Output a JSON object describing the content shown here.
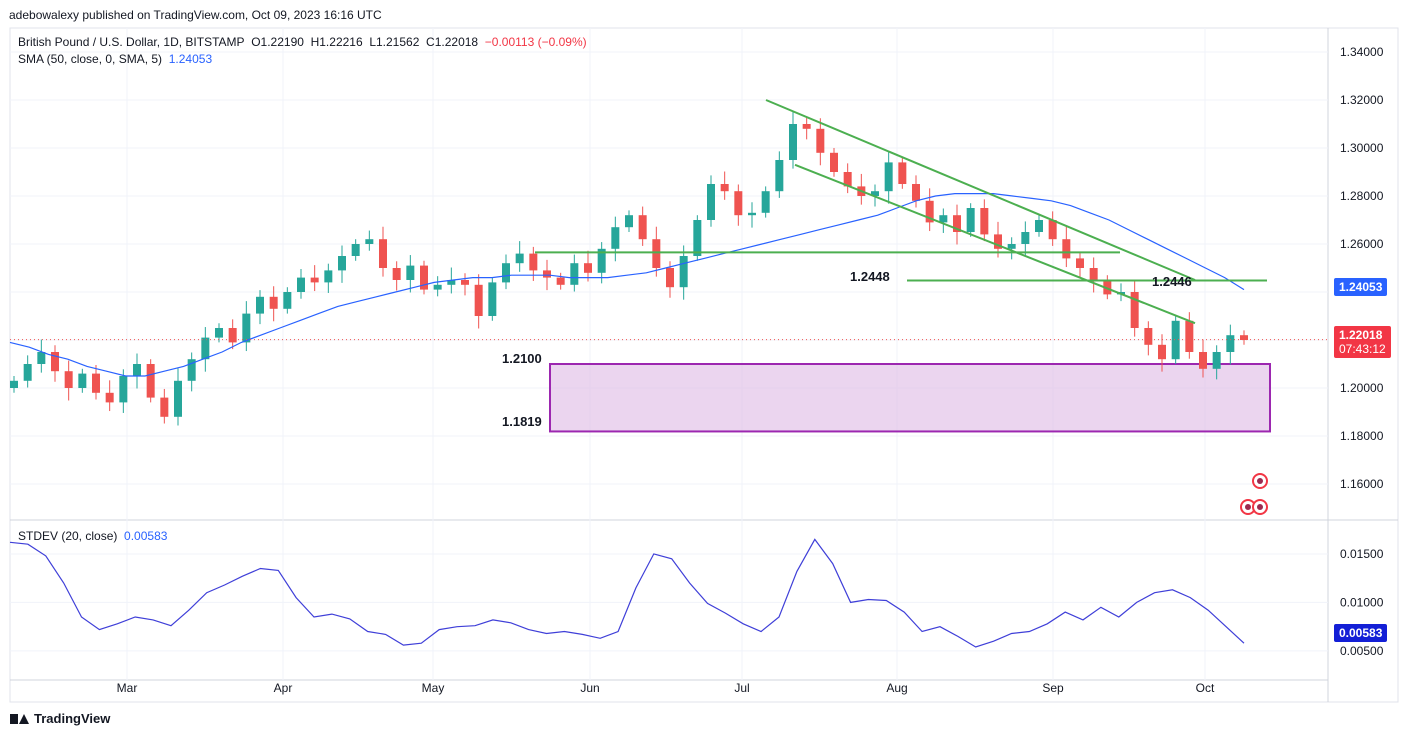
{
  "header": {
    "published": "adebowalexy published on TradingView.com, Oct 09, 2023 16:16 UTC",
    "symbol": "British Pound / U.S. Dollar, 1D, BITSTAMP",
    "open": "O1.22190",
    "high": "H1.22216",
    "low": "L1.21562",
    "close": "C1.22018",
    "change": "−0.00113 (−0.09%)",
    "sma_label": "SMA (50, close, 0, SMA, 5)",
    "sma_value": "1.24053",
    "stdev_label": "STDEV (20, close)",
    "stdev_value": "0.00583"
  },
  "footer": {
    "brand": "TradingView"
  },
  "price_tags": {
    "sma": "1.24053",
    "last": "1.22018",
    "countdown": "07:43:12",
    "stdev": "0.00583"
  },
  "levels": {
    "l1": "1.2448",
    "l2": "1.2446",
    "zone_top": "1.2100",
    "zone_bottom": "1.1819"
  },
  "colors": {
    "up": "#26a69a",
    "down": "#ef5350",
    "sma": "#2962ff",
    "trend": "#4caf50",
    "zone": "#9c27b0",
    "stdev": "#3f3fd8"
  },
  "chart_data": [
    {
      "type": "candlestick",
      "title": "British Pound / U.S. Dollar, 1D, BITSTAMP",
      "x_ticks": [
        "Mar",
        "Apr",
        "May",
        "Jun",
        "Jul",
        "Aug",
        "Sep",
        "Oct"
      ],
      "y_ticks": [
        "1.34000",
        "1.32000",
        "1.30000",
        "1.28000",
        "1.26000",
        "1.24000",
        "1.22000",
        "1.20000",
        "1.18000",
        "1.16000"
      ],
      "ylim": [
        1.145,
        1.35
      ],
      "series": [
        {
          "name": "GBPUSD close (approx.)",
          "values": [
            1.203,
            1.21,
            1.215,
            1.207,
            1.2,
            1.206,
            1.198,
            1.194,
            1.205,
            1.21,
            1.196,
            1.188,
            1.203,
            1.212,
            1.221,
            1.225,
            1.219,
            1.231,
            1.238,
            1.233,
            1.24,
            1.246,
            1.244,
            1.249,
            1.255,
            1.26,
            1.262,
            1.25,
            1.245,
            1.251,
            1.241,
            1.243,
            1.245,
            1.243,
            1.23,
            1.244,
            1.252,
            1.256,
            1.249,
            1.246,
            1.243,
            1.252,
            1.248,
            1.258,
            1.267,
            1.272,
            1.262,
            1.25,
            1.242,
            1.255,
            1.27,
            1.285,
            1.282,
            1.272,
            1.273,
            1.282,
            1.295,
            1.31,
            1.308,
            1.298,
            1.29,
            1.284,
            1.28,
            1.282,
            1.294,
            1.285,
            1.278,
            1.269,
            1.272,
            1.265,
            1.275,
            1.264,
            1.258,
            1.26,
            1.265,
            1.27,
            1.262,
            1.254,
            1.25,
            1.245,
            1.239,
            1.24,
            1.225,
            1.218,
            1.212,
            1.228,
            1.215,
            1.208,
            1.215,
            1.222,
            1.22
          ]
        },
        {
          "name": "SMA (50, close, 0, SMA, 5)",
          "values": [
            1.219,
            1.217,
            1.214,
            1.212,
            1.209,
            1.207,
            1.205,
            1.205,
            1.207,
            1.209,
            1.212,
            1.215,
            1.219,
            1.222,
            1.225,
            1.228,
            1.231,
            1.234,
            1.236,
            1.238,
            1.24,
            1.242,
            1.244,
            1.245,
            1.246,
            1.246,
            1.247,
            1.247,
            1.247,
            1.246,
            1.246,
            1.246,
            1.247,
            1.248,
            1.25,
            1.252,
            1.254,
            1.256,
            1.258,
            1.26,
            1.262,
            1.264,
            1.266,
            1.268,
            1.27,
            1.272,
            1.275,
            1.278,
            1.28,
            1.281,
            1.281,
            1.281,
            1.28,
            1.279,
            1.278,
            1.276,
            1.273,
            1.27,
            1.266,
            1.262,
            1.258,
            1.254,
            1.25,
            1.246,
            1.241
          ]
        }
      ],
      "annotations": [
        "1.2448",
        "1.2446",
        "1.2100",
        "1.1819"
      ]
    },
    {
      "type": "line",
      "title": "STDEV (20, close)",
      "y_ticks": [
        "0.01500",
        "0.01000",
        "0.00500"
      ],
      "ylim": [
        0.002,
        0.0185
      ],
      "series": [
        {
          "name": "STDEV (20, close)",
          "values": [
            0.0162,
            0.016,
            0.0148,
            0.012,
            0.0085,
            0.0072,
            0.0078,
            0.0085,
            0.0082,
            0.0076,
            0.0092,
            0.011,
            0.0118,
            0.0127,
            0.0135,
            0.0133,
            0.0105,
            0.0085,
            0.0088,
            0.0083,
            0.007,
            0.0067,
            0.0056,
            0.0058,
            0.0072,
            0.0075,
            0.0076,
            0.0082,
            0.0079,
            0.0072,
            0.0068,
            0.007,
            0.0067,
            0.0063,
            0.007,
            0.0115,
            0.015,
            0.0145,
            0.012,
            0.0099,
            0.0089,
            0.0078,
            0.007,
            0.0085,
            0.0132,
            0.0165,
            0.014,
            0.01,
            0.0103,
            0.0102,
            0.009,
            0.007,
            0.0075,
            0.0065,
            0.0054,
            0.006,
            0.0068,
            0.007,
            0.0078,
            0.009,
            0.0082,
            0.0095,
            0.0085,
            0.01,
            0.011,
            0.0113,
            0.0105,
            0.0092,
            0.0075,
            0.0058
          ]
        }
      ]
    }
  ]
}
